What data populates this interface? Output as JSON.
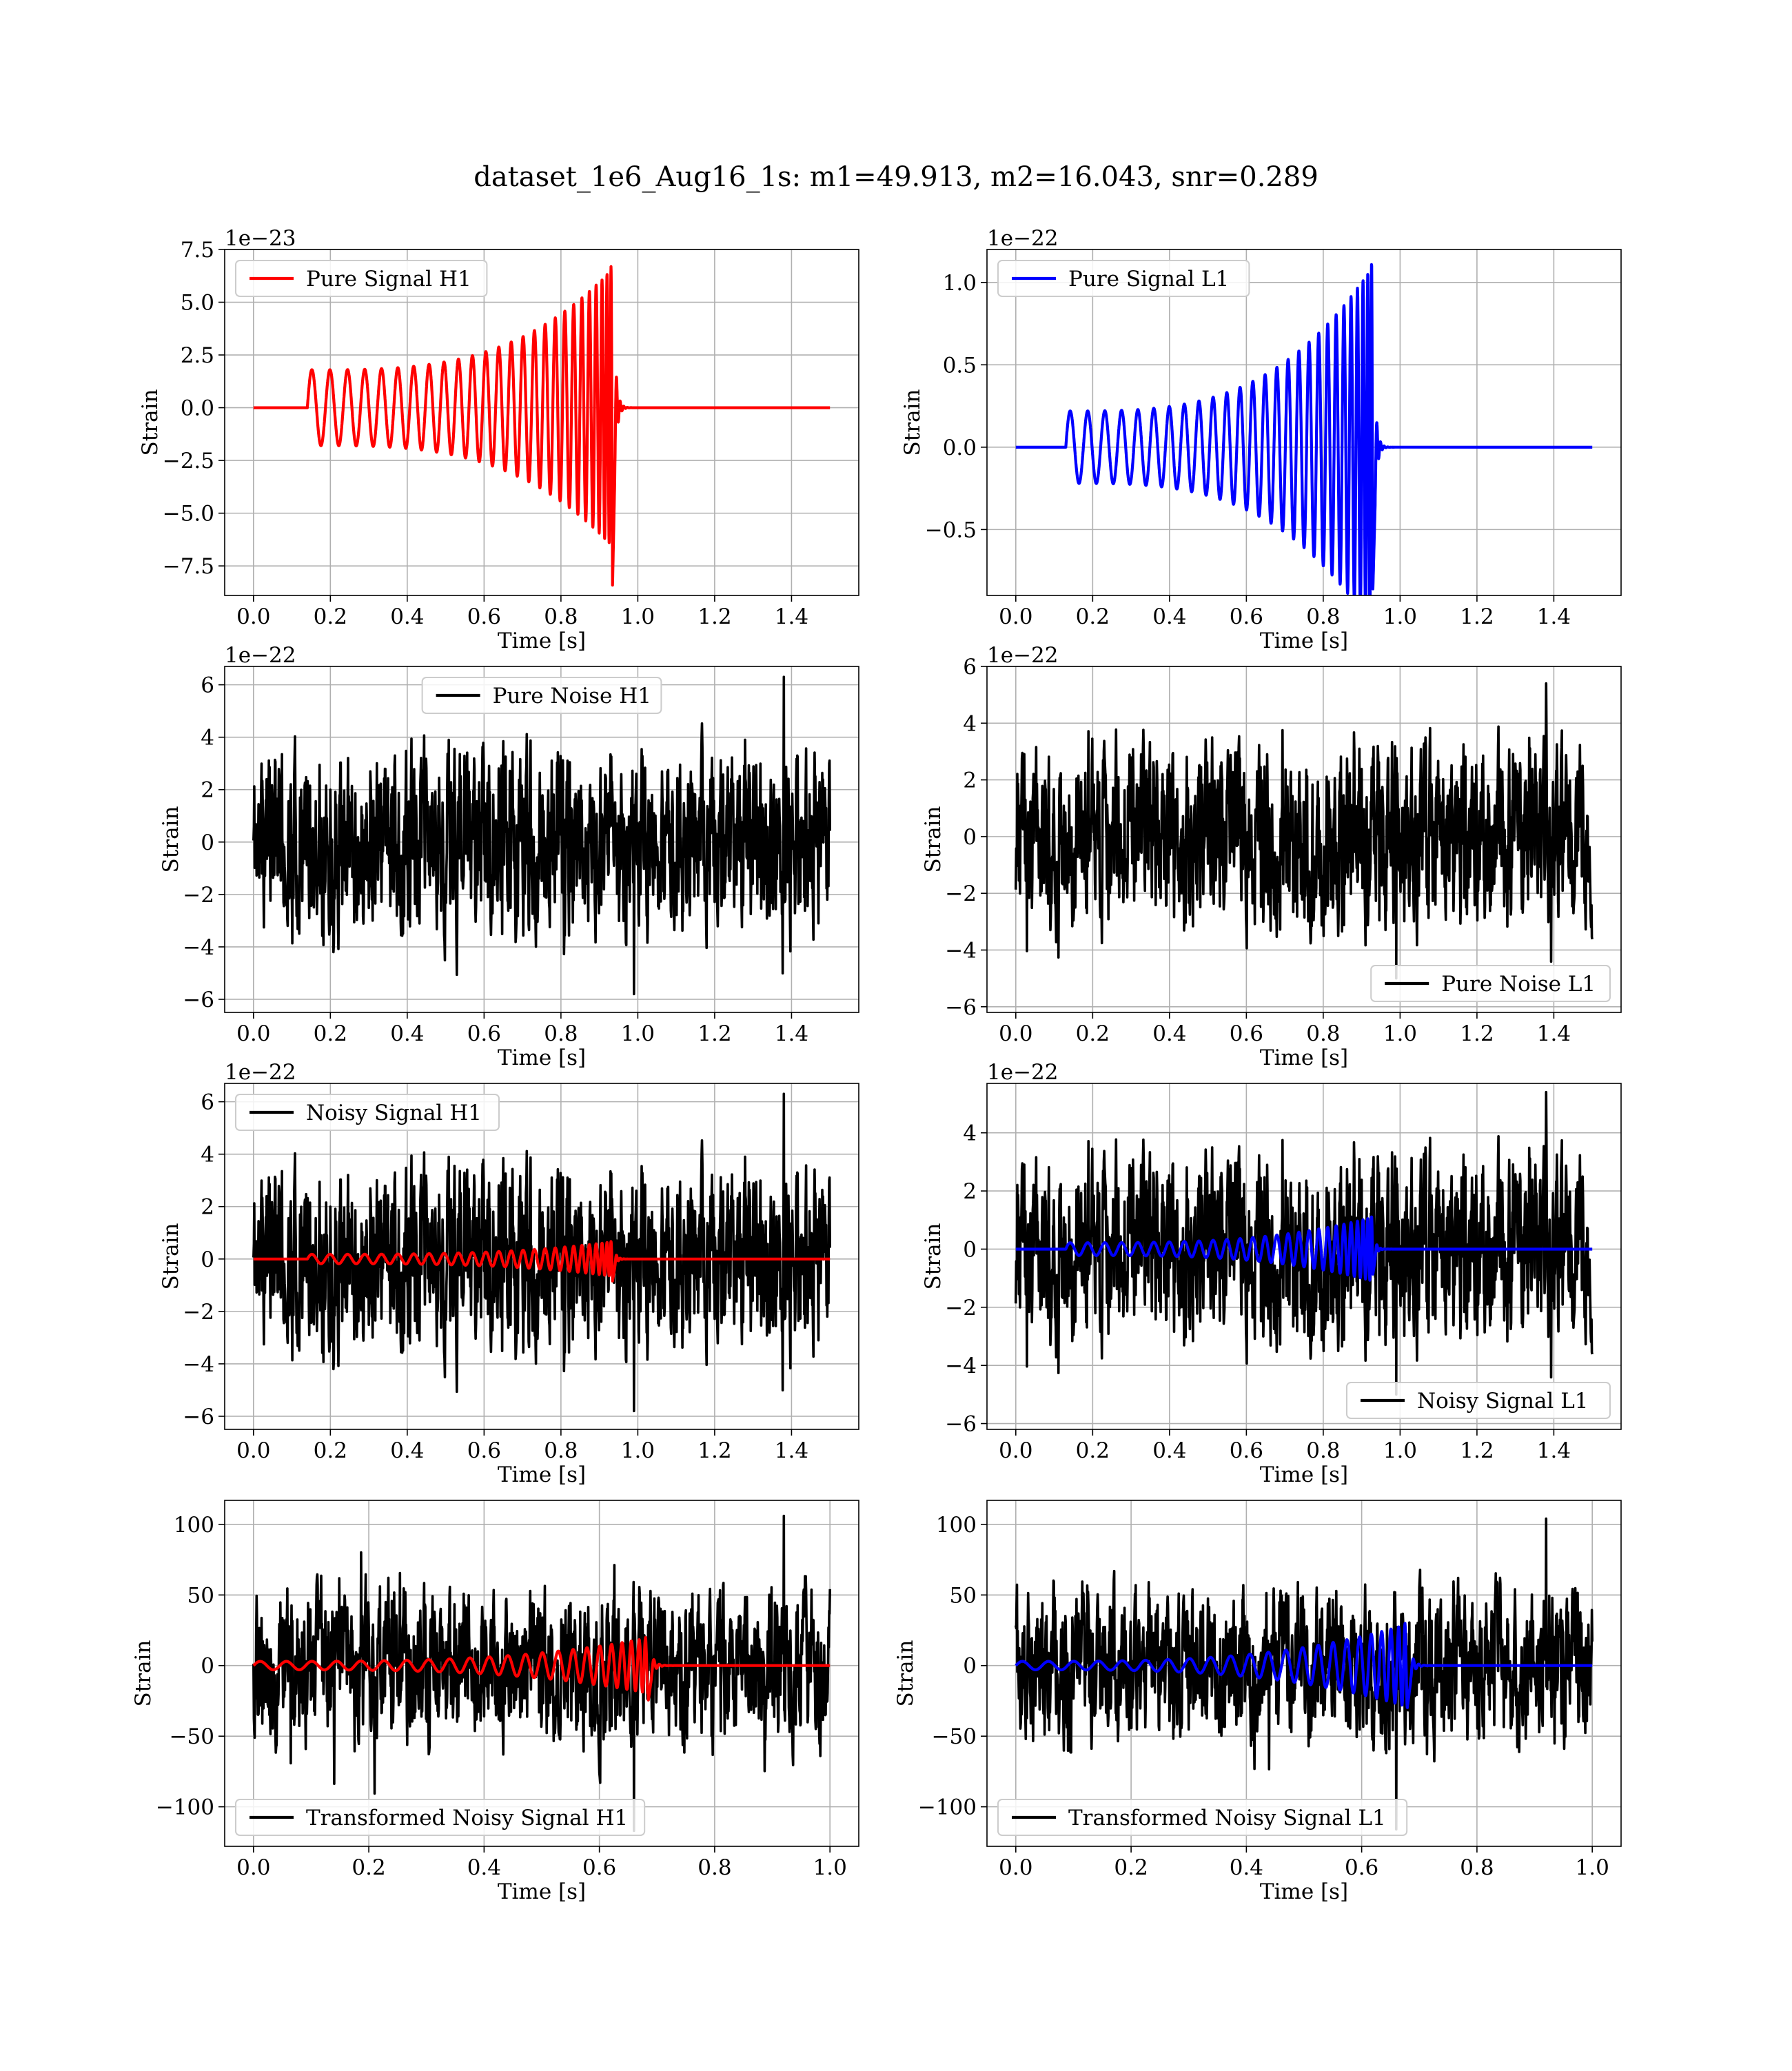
{
  "figure": {
    "suptitle": "dataset_1e6_Aug16_1s: m1=49.913, m2=16.043, snr=0.289"
  },
  "colors": {
    "signal_H1": "#ff0000",
    "signal_L1": "#0000ff",
    "noise": "#000000",
    "grid": "#b0b0b0",
    "legend_border": "#cccccc"
  },
  "chart_data": [
    {
      "id": "pure-signal-h1",
      "type": "line",
      "xlabel": "Time [s]",
      "ylabel": "Strain",
      "offset_text": "1e−23",
      "xlim": [
        -0.075,
        1.575
      ],
      "ylim": [
        -8.9,
        7.5
      ],
      "xticks": [
        0.0,
        0.2,
        0.4,
        0.6,
        0.8,
        1.0,
        1.2,
        1.4
      ],
      "xtick_labels": [
        "0.0",
        "0.2",
        "0.4",
        "0.6",
        "0.8",
        "1.0",
        "1.2",
        "1.4"
      ],
      "yticks": [
        7.5,
        5.0,
        2.5,
        0.0,
        -2.5,
        -5.0,
        -7.5
      ],
      "ytick_labels": [
        "7.5",
        "5.0",
        "2.5",
        "0.0",
        "−2.5",
        "−5.0",
        "−7.5"
      ],
      "grid": true,
      "legend_position": "upper-left",
      "legend": [
        {
          "label": "Pure Signal H1",
          "color": "#ff0000"
        }
      ],
      "series": [
        {
          "name": "Pure Signal H1",
          "kind": "chirp",
          "color": "#ff0000",
          "t_start": 0.14,
          "t_merge": 0.94,
          "t_end": 1.5,
          "amp_start": 1.8,
          "amp_peak": 6.7,
          "amp_min": -8.6,
          "cycles": 27
        }
      ]
    },
    {
      "id": "pure-signal-l1",
      "type": "line",
      "xlabel": "Time [s]",
      "ylabel": "Strain",
      "offset_text": "1e−22",
      "xlim": [
        -0.075,
        1.575
      ],
      "ylim": [
        -0.9,
        1.2
      ],
      "xticks": [
        0.0,
        0.2,
        0.4,
        0.6,
        0.8,
        1.0,
        1.2,
        1.4
      ],
      "xtick_labels": [
        "0.0",
        "0.2",
        "0.4",
        "0.6",
        "0.8",
        "1.0",
        "1.2",
        "1.4"
      ],
      "yticks": [
        1.0,
        0.5,
        0.0,
        -0.5
      ],
      "ytick_labels": [
        "1.0",
        "0.5",
        "0.0",
        "−0.5"
      ],
      "grid": true,
      "legend_position": "upper-left",
      "legend": [
        {
          "label": "Pure Signal L1",
          "color": "#0000ff"
        }
      ],
      "series": [
        {
          "name": "Pure Signal L1",
          "kind": "chirp",
          "color": "#0000ff",
          "t_start": 0.13,
          "t_merge": 0.935,
          "t_end": 1.5,
          "amp_start": 0.22,
          "amp_peak": 1.12,
          "amp_min": -0.88,
          "cycles": 28
        }
      ]
    },
    {
      "id": "pure-noise-h1",
      "type": "line",
      "xlabel": "Time [s]",
      "ylabel": "Strain",
      "offset_text": "1e−22",
      "xlim": [
        -0.075,
        1.575
      ],
      "ylim": [
        -6.5,
        6.7
      ],
      "xticks": [
        0.0,
        0.2,
        0.4,
        0.6,
        0.8,
        1.0,
        1.2,
        1.4
      ],
      "xtick_labels": [
        "0.0",
        "0.2",
        "0.4",
        "0.6",
        "0.8",
        "1.0",
        "1.2",
        "1.4"
      ],
      "yticks": [
        6,
        4,
        2,
        0,
        -2,
        -4,
        -6
      ],
      "ytick_labels": [
        "6",
        "4",
        "2",
        "0",
        "−2",
        "−4",
        "−6"
      ],
      "grid": true,
      "legend_position": "upper-center",
      "legend": [
        {
          "label": "Pure Noise H1",
          "color": "#000000"
        }
      ],
      "series": [
        {
          "name": "Pure Noise H1",
          "kind": "noise",
          "color": "#000000",
          "t_start": 0.0,
          "t_end": 1.5,
          "amp": 1.9,
          "max": 6.3,
          "min": -5.8,
          "seed": 11
        }
      ]
    },
    {
      "id": "pure-noise-l1",
      "type": "line",
      "xlabel": "Time [s]",
      "ylabel": "Strain",
      "offset_text": "1e−22",
      "xlim": [
        -0.075,
        1.575
      ],
      "ylim": [
        -6.2,
        6.0
      ],
      "xticks": [
        0.0,
        0.2,
        0.4,
        0.6,
        0.8,
        1.0,
        1.2,
        1.4
      ],
      "xtick_labels": [
        "0.0",
        "0.2",
        "0.4",
        "0.6",
        "0.8",
        "1.0",
        "1.2",
        "1.4"
      ],
      "yticks": [
        6,
        4,
        2,
        0,
        -2,
        -4,
        -6
      ],
      "ytick_labels": [
        "6",
        "4",
        "2",
        "0",
        "−2",
        "−4",
        "−6"
      ],
      "grid": true,
      "legend_position": "lower-right",
      "legend": [
        {
          "label": "Pure Noise L1",
          "color": "#000000"
        }
      ],
      "series": [
        {
          "name": "Pure Noise L1",
          "kind": "noise",
          "color": "#000000",
          "t_start": 0.0,
          "t_end": 1.5,
          "amp": 1.7,
          "max": 5.4,
          "min": -5.0,
          "seed": 23
        }
      ]
    },
    {
      "id": "noisy-signal-h1",
      "type": "line",
      "xlabel": "Time [s]",
      "ylabel": "Strain",
      "offset_text": "1e−22",
      "xlim": [
        -0.075,
        1.575
      ],
      "ylim": [
        -6.5,
        6.7
      ],
      "xticks": [
        0.0,
        0.2,
        0.4,
        0.6,
        0.8,
        1.0,
        1.2,
        1.4
      ],
      "xtick_labels": [
        "0.0",
        "0.2",
        "0.4",
        "0.6",
        "0.8",
        "1.0",
        "1.2",
        "1.4"
      ],
      "yticks": [
        6,
        4,
        2,
        0,
        -2,
        -4,
        -6
      ],
      "ytick_labels": [
        "6",
        "4",
        "2",
        "0",
        "−2",
        "−4",
        "−6"
      ],
      "grid": true,
      "legend_position": "upper-left",
      "legend": [
        {
          "label": "Noisy Signal H1",
          "color": "#000000"
        }
      ],
      "series": [
        {
          "name": "Noisy Signal H1",
          "kind": "noise",
          "color": "#000000",
          "t_start": 0.0,
          "t_end": 1.5,
          "amp": 1.9,
          "max": 6.3,
          "min": -5.8,
          "seed": 11
        },
        {
          "kind": "chirp",
          "color": "#ff0000",
          "t_start": 0.14,
          "t_merge": 0.94,
          "t_end": 1.5,
          "amp_start": 0.18,
          "amp_peak": 0.67,
          "amp_min": -0.86,
          "cycles": 27
        }
      ]
    },
    {
      "id": "noisy-signal-l1",
      "type": "line",
      "xlabel": "Time [s]",
      "ylabel": "Strain",
      "offset_text": "1e−22",
      "xlim": [
        -0.075,
        1.575
      ],
      "ylim": [
        -6.2,
        5.7
      ],
      "xticks": [
        0.0,
        0.2,
        0.4,
        0.6,
        0.8,
        1.0,
        1.2,
        1.4
      ],
      "xtick_labels": [
        "0.0",
        "0.2",
        "0.4",
        "0.6",
        "0.8",
        "1.0",
        "1.2",
        "1.4"
      ],
      "yticks": [
        4,
        2,
        0,
        -2,
        -4,
        -6
      ],
      "ytick_labels": [
        "4",
        "2",
        "0",
        "−2",
        "−4",
        "−6"
      ],
      "grid": true,
      "legend_position": "lower-right",
      "legend": [
        {
          "label": "Noisy Signal L1",
          "color": "#000000"
        }
      ],
      "series": [
        {
          "name": "Noisy Signal L1",
          "kind": "noise",
          "color": "#000000",
          "t_start": 0.0,
          "t_end": 1.5,
          "amp": 1.7,
          "max": 5.4,
          "min": -5.0,
          "seed": 23
        },
        {
          "kind": "chirp",
          "color": "#0000ff",
          "t_start": 0.13,
          "t_merge": 0.935,
          "t_end": 1.5,
          "amp_start": 0.22,
          "amp_peak": 1.12,
          "amp_min": -0.88,
          "cycles": 28
        }
      ]
    },
    {
      "id": "transformed-noisy-signal-h1",
      "type": "line",
      "xlabel": "Time [s]",
      "ylabel": "Strain",
      "offset_text": "",
      "xlim": [
        -0.05,
        1.05
      ],
      "ylim": [
        -128,
        117
      ],
      "xticks": [
        0.0,
        0.2,
        0.4,
        0.6,
        0.8,
        1.0
      ],
      "xtick_labels": [
        "0.0",
        "0.2",
        "0.4",
        "0.6",
        "0.8",
        "1.0"
      ],
      "yticks": [
        100,
        50,
        0,
        -50,
        -100
      ],
      "ytick_labels": [
        "100",
        "50",
        "0",
        "−50",
        "−100"
      ],
      "grid": true,
      "legend_position": "lower-left",
      "legend": [
        {
          "label": "Transformed Noisy Signal H1",
          "color": "#000000"
        }
      ],
      "series": [
        {
          "name": "Transformed Noisy Signal H1",
          "kind": "noise",
          "color": "#000000",
          "t_start": 0.0,
          "t_end": 1.0,
          "amp": 30,
          "max": 106,
          "min": -117,
          "seed": 37
        },
        {
          "kind": "chirp",
          "color": "#ff0000",
          "t_start": 0.0,
          "t_merge": 0.69,
          "t_end": 1.0,
          "amp_start": 3,
          "amp_peak": 20,
          "amp_min": -25,
          "cycles": 24
        }
      ]
    },
    {
      "id": "transformed-noisy-signal-l1",
      "type": "line",
      "xlabel": "Time [s]",
      "ylabel": "Strain",
      "offset_text": "",
      "xlim": [
        -0.05,
        1.05
      ],
      "ylim": [
        -128,
        117
      ],
      "xticks": [
        0.0,
        0.2,
        0.4,
        0.6,
        0.8,
        1.0
      ],
      "xtick_labels": [
        "0.0",
        "0.2",
        "0.4",
        "0.6",
        "0.8",
        "1.0"
      ],
      "yticks": [
        100,
        50,
        0,
        -50,
        -100
      ],
      "ytick_labels": [
        "100",
        "50",
        "0",
        "−50",
        "−100"
      ],
      "grid": true,
      "legend_position": "lower-left",
      "legend": [
        {
          "label": "Transformed Noisy Signal L1",
          "color": "#000000"
        }
      ],
      "series": [
        {
          "name": "Transformed Noisy Signal L1",
          "kind": "noise",
          "color": "#000000",
          "t_start": 0.0,
          "t_end": 1.0,
          "amp": 30,
          "max": 104,
          "min": -116,
          "seed": 41
        },
        {
          "kind": "chirp",
          "color": "#0000ff",
          "t_start": 0.0,
          "t_merge": 0.685,
          "t_end": 1.0,
          "amp_start": 3,
          "amp_peak": 30,
          "amp_min": -28,
          "cycles": 24
        }
      ]
    }
  ]
}
